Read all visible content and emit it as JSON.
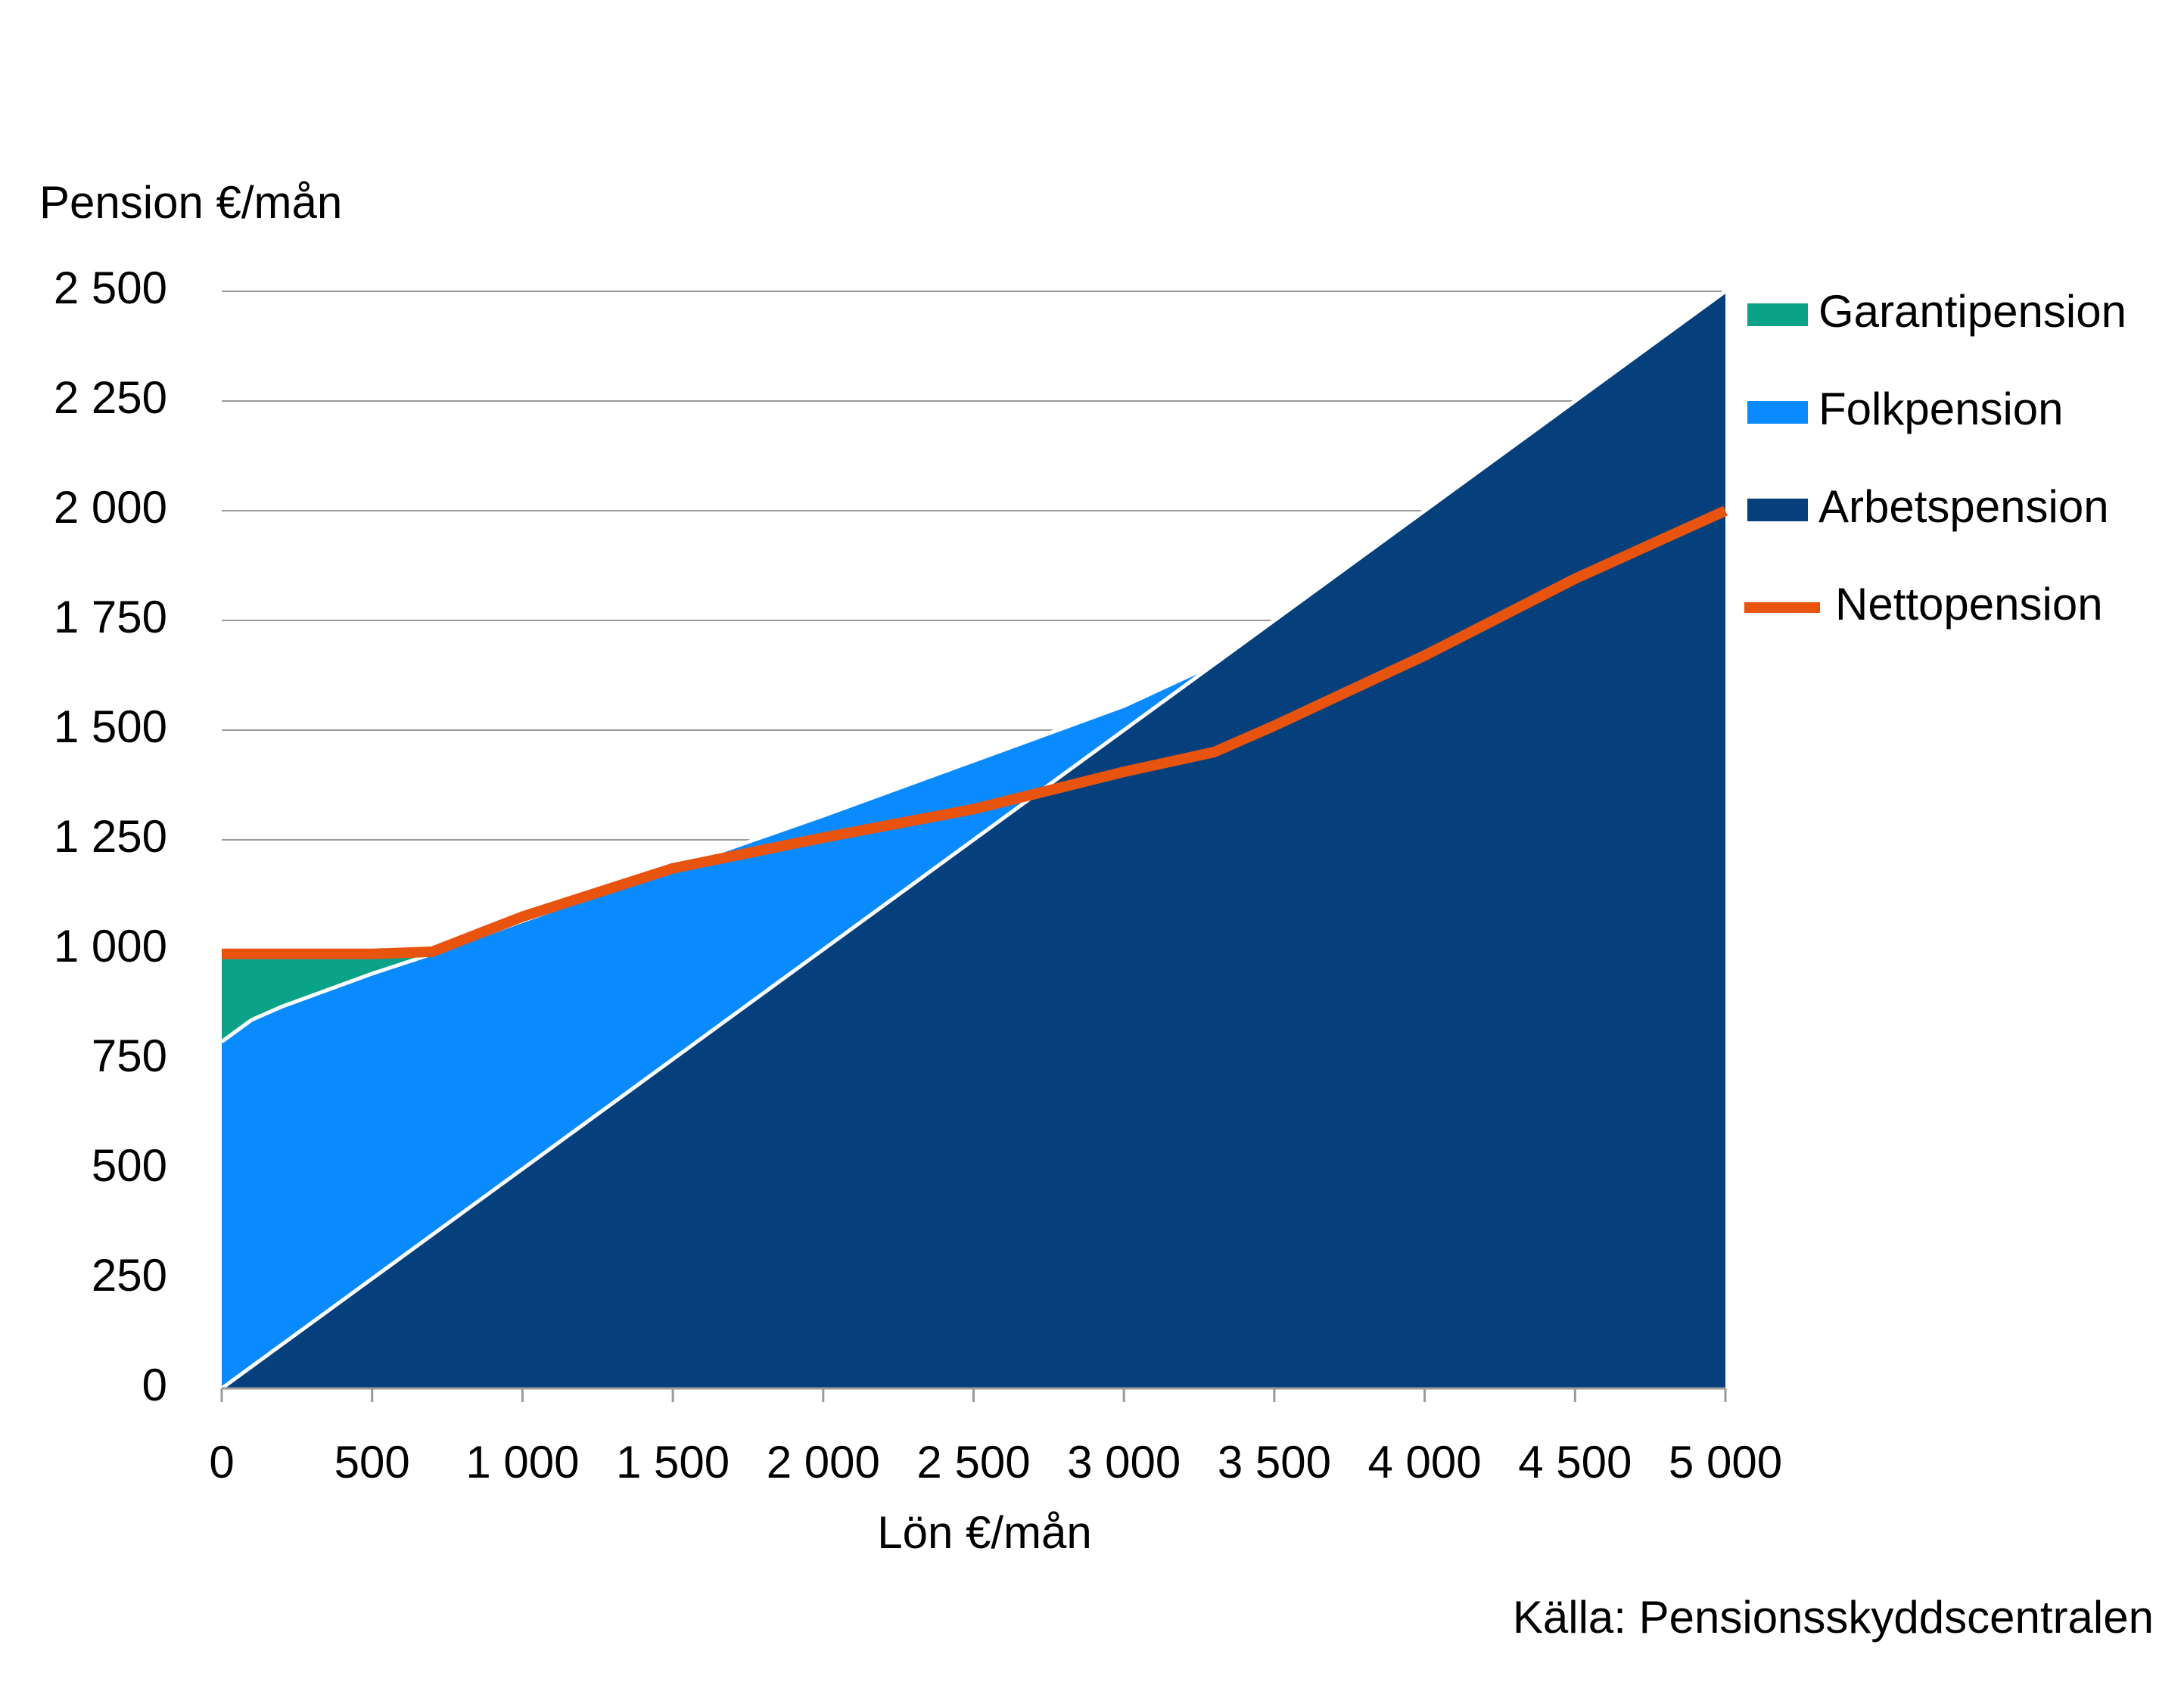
{
  "chart_data": {
    "type": "area",
    "stacked": true,
    "y_label": "Pension €/mån",
    "x_label": "Lön €/mån",
    "source": "Källa: Pensionsskyddscentralen",
    "x": [
      0,
      100,
      200,
      500,
      700,
      1000,
      1500,
      2000,
      2500,
      3000,
      3300,
      3500,
      4000,
      4500,
      5000
    ],
    "series": [
      {
        "name": "Garantipension",
        "type": "area",
        "color": "#0aa387",
        "values": [
          210,
          160,
          130,
          55,
          10,
          0,
          0,
          0,
          0,
          0,
          0,
          0,
          0,
          0,
          0
        ]
      },
      {
        "name": "Folkpension",
        "type": "area",
        "color": "#0a8aff",
        "values": [
          790,
          790,
          770,
          695,
          640,
          565,
          435,
          305,
          180,
          55,
          0,
          0,
          0,
          0,
          0
        ]
      },
      {
        "name": "Arbetspension",
        "type": "area",
        "color": "#06407c",
        "values": [
          0,
          50,
          100,
          250,
          350,
          500,
          750,
          1000,
          1250,
          1500,
          1650,
          1750,
          2000,
          2250,
          2500
        ]
      },
      {
        "name": "Nettopension",
        "type": "line",
        "color": "#e8540e",
        "values": [
          990,
          990,
          990,
          990,
          995,
          1075,
          1185,
          1255,
          1320,
          1405,
          1450,
          1510,
          1670,
          1845,
          2000
        ]
      }
    ],
    "xlim": [
      0,
      5000
    ],
    "xticks": [
      0,
      500,
      {
        "value": 1000,
        "label": "1 000"
      },
      {
        "value": 1500,
        "label": "1 500"
      },
      {
        "value": 2000,
        "label": "2 000"
      },
      {
        "value": 2500,
        "label": "2 500"
      },
      {
        "value": 3000,
        "label": "3 000"
      },
      {
        "value": 3500,
        "label": "3 500"
      },
      {
        "value": 4000,
        "label": "4 000"
      },
      {
        "value": 4500,
        "label": "4 500"
      },
      {
        "value": 5000,
        "label": "5 000"
      }
    ],
    "ylim": [
      0,
      2500
    ],
    "yticks": [
      0,
      250,
      500,
      750,
      {
        "value": 1000,
        "label": "1 000"
      },
      {
        "value": 1250,
        "label": "1 250"
      },
      {
        "value": 1500,
        "label": "1 500"
      },
      {
        "value": 1750,
        "label": "1 750"
      },
      {
        "value": 2000,
        "label": "2 000"
      },
      {
        "value": 2250,
        "label": "2 250"
      },
      {
        "value": 2500,
        "label": "2 500"
      }
    ],
    "grid": true,
    "legend": "right"
  }
}
